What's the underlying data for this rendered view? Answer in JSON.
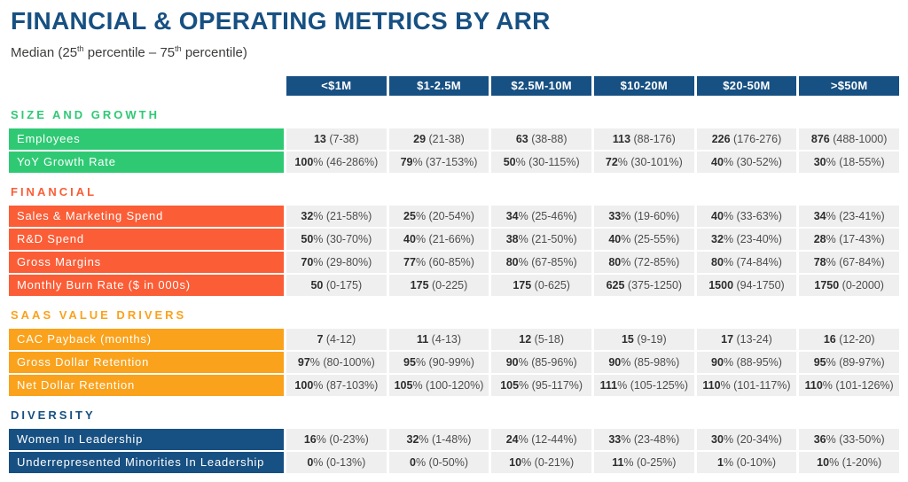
{
  "page": {
    "title": "FINANCIAL & OPERATING METRICS BY ARR",
    "subtitle_parts": [
      {
        "text": "Median (25"
      },
      {
        "text": "th",
        "sup": true
      },
      {
        "text": " percentile – 75"
      },
      {
        "text": "th",
        "sup": true
      },
      {
        "text": " percentile)"
      }
    ]
  },
  "colors": {
    "blue": "#175082",
    "green": "#2FC974",
    "red": "#FB5D36",
    "amber": "#FAA21C",
    "cell_bg": "#EFEFEF"
  },
  "chart_data": {
    "type": "table",
    "title": "FINANCIAL & OPERATING METRICS BY ARR",
    "subtitle": "Median (25th percentile – 75th percentile)",
    "columns": [
      "<$1M",
      "$1-2.5M",
      "$2.5M-10M",
      "$10-20M",
      "$20-50M",
      ">$50M"
    ],
    "sections": [
      {
        "name": "SIZE AND GROWTH",
        "color": "#2FC974",
        "rows": [
          {
            "label": "Employees",
            "cells": [
              "13 (7-38)",
              "29 (21-38)",
              "63 (38-88)",
              "113 (88-176)",
              "226 (176-276)",
              "876 (488-1000)"
            ]
          },
          {
            "label": "YoY Growth Rate",
            "cells": [
              "100% (46-286%)",
              "79% (37-153%)",
              "50% (30-115%)",
              "72% (30-101%)",
              "40% (30-52%)",
              "30% (18-55%)"
            ]
          }
        ]
      },
      {
        "name": "FINANCIAL",
        "color": "#FB5D36",
        "rows": [
          {
            "label": "Sales & Marketing Spend",
            "cells": [
              "32% (21-58%)",
              "25% (20-54%)",
              "34% (25-46%)",
              "33% (19-60%)",
              "40% (33-63%)",
              "34% (23-41%)"
            ]
          },
          {
            "label": "R&D Spend",
            "cells": [
              "50% (30-70%)",
              "40% (21-66%)",
              "38% (21-50%)",
              "40% (25-55%)",
              "32% (23-40%)",
              "28% (17-43%)"
            ]
          },
          {
            "label": "Gross Margins",
            "cells": [
              "70% (29-80%)",
              "77% (60-85%)",
              "80% (67-85%)",
              "80% (72-85%)",
              "80% (74-84%)",
              "78% (67-84%)"
            ]
          },
          {
            "label": "Monthly Burn Rate ($ in 000s)",
            "cells": [
              "50 (0-175)",
              "175 (0-225)",
              "175 (0-625)",
              "625 (375-1250)",
              "1500 (94-1750)",
              "1750 (0-2000)"
            ]
          }
        ]
      },
      {
        "name": "SAAS VALUE DRIVERS",
        "color": "#FAA21C",
        "rows": [
          {
            "label": "CAC Payback (months)",
            "cells": [
              "7 (4-12)",
              "11 (4-13)",
              "12 (5-18)",
              "15 (9-19)",
              "17 (13-24)",
              "16 (12-20)"
            ]
          },
          {
            "label": "Gross Dollar Retention",
            "cells": [
              "97% (80-100%)",
              "95% (90-99%)",
              "90% (85-96%)",
              "90% (85-98%)",
              "90% (88-95%)",
              "95% (89-97%)"
            ]
          },
          {
            "label": "Net Dollar Retention",
            "cells": [
              "100% (87-103%)",
              "105% (100-120%)",
              "105% (95-117%)",
              "111% (105-125%)",
              "110% (101-117%)",
              "110% (101-126%)"
            ]
          }
        ]
      },
      {
        "name": "DIVERSITY",
        "color": "#175082",
        "rows": [
          {
            "label": "Women In Leadership",
            "cells": [
              "16% (0-23%)",
              "32% (1-48%)",
              "24% (12-44%)",
              "33% (23-48%)",
              "30% (20-34%)",
              "36% (33-50%)"
            ]
          },
          {
            "label": "Underrepresented Minorities In Leadership",
            "cells": [
              "0% (0-13%)",
              "0% (0-50%)",
              "10% (0-21%)",
              "11% (0-25%)",
              "1% (0-10%)",
              "10% (1-20%)"
            ]
          }
        ]
      }
    ]
  }
}
